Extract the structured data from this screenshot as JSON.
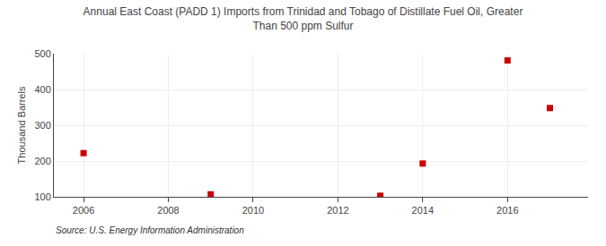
{
  "chart_data": {
    "type": "scatter",
    "title": "Annual East Coast (PADD 1) Imports from Trinidad and Tobago of Distillate Fuel Oil, Greater\nThan 500 ppm Sulfur",
    "ylabel": "Thousand Barrels",
    "annotations": [
      "Source: U.S. Energy Information Administration"
    ],
    "x": [
      2006,
      2009,
      2013,
      2014,
      2016,
      2017
    ],
    "values": [
      222,
      107,
      103,
      193,
      481,
      348
    ],
    "color": "#cc0000",
    "marker": "square",
    "xlim": [
      2005.3,
      2017.9
    ],
    "ylim": [
      100,
      500
    ],
    "xticks": [
      2006,
      2008,
      2010,
      2012,
      2014,
      2016
    ],
    "yticks": [
      100,
      200,
      300,
      400,
      500
    ],
    "grid": true
  }
}
